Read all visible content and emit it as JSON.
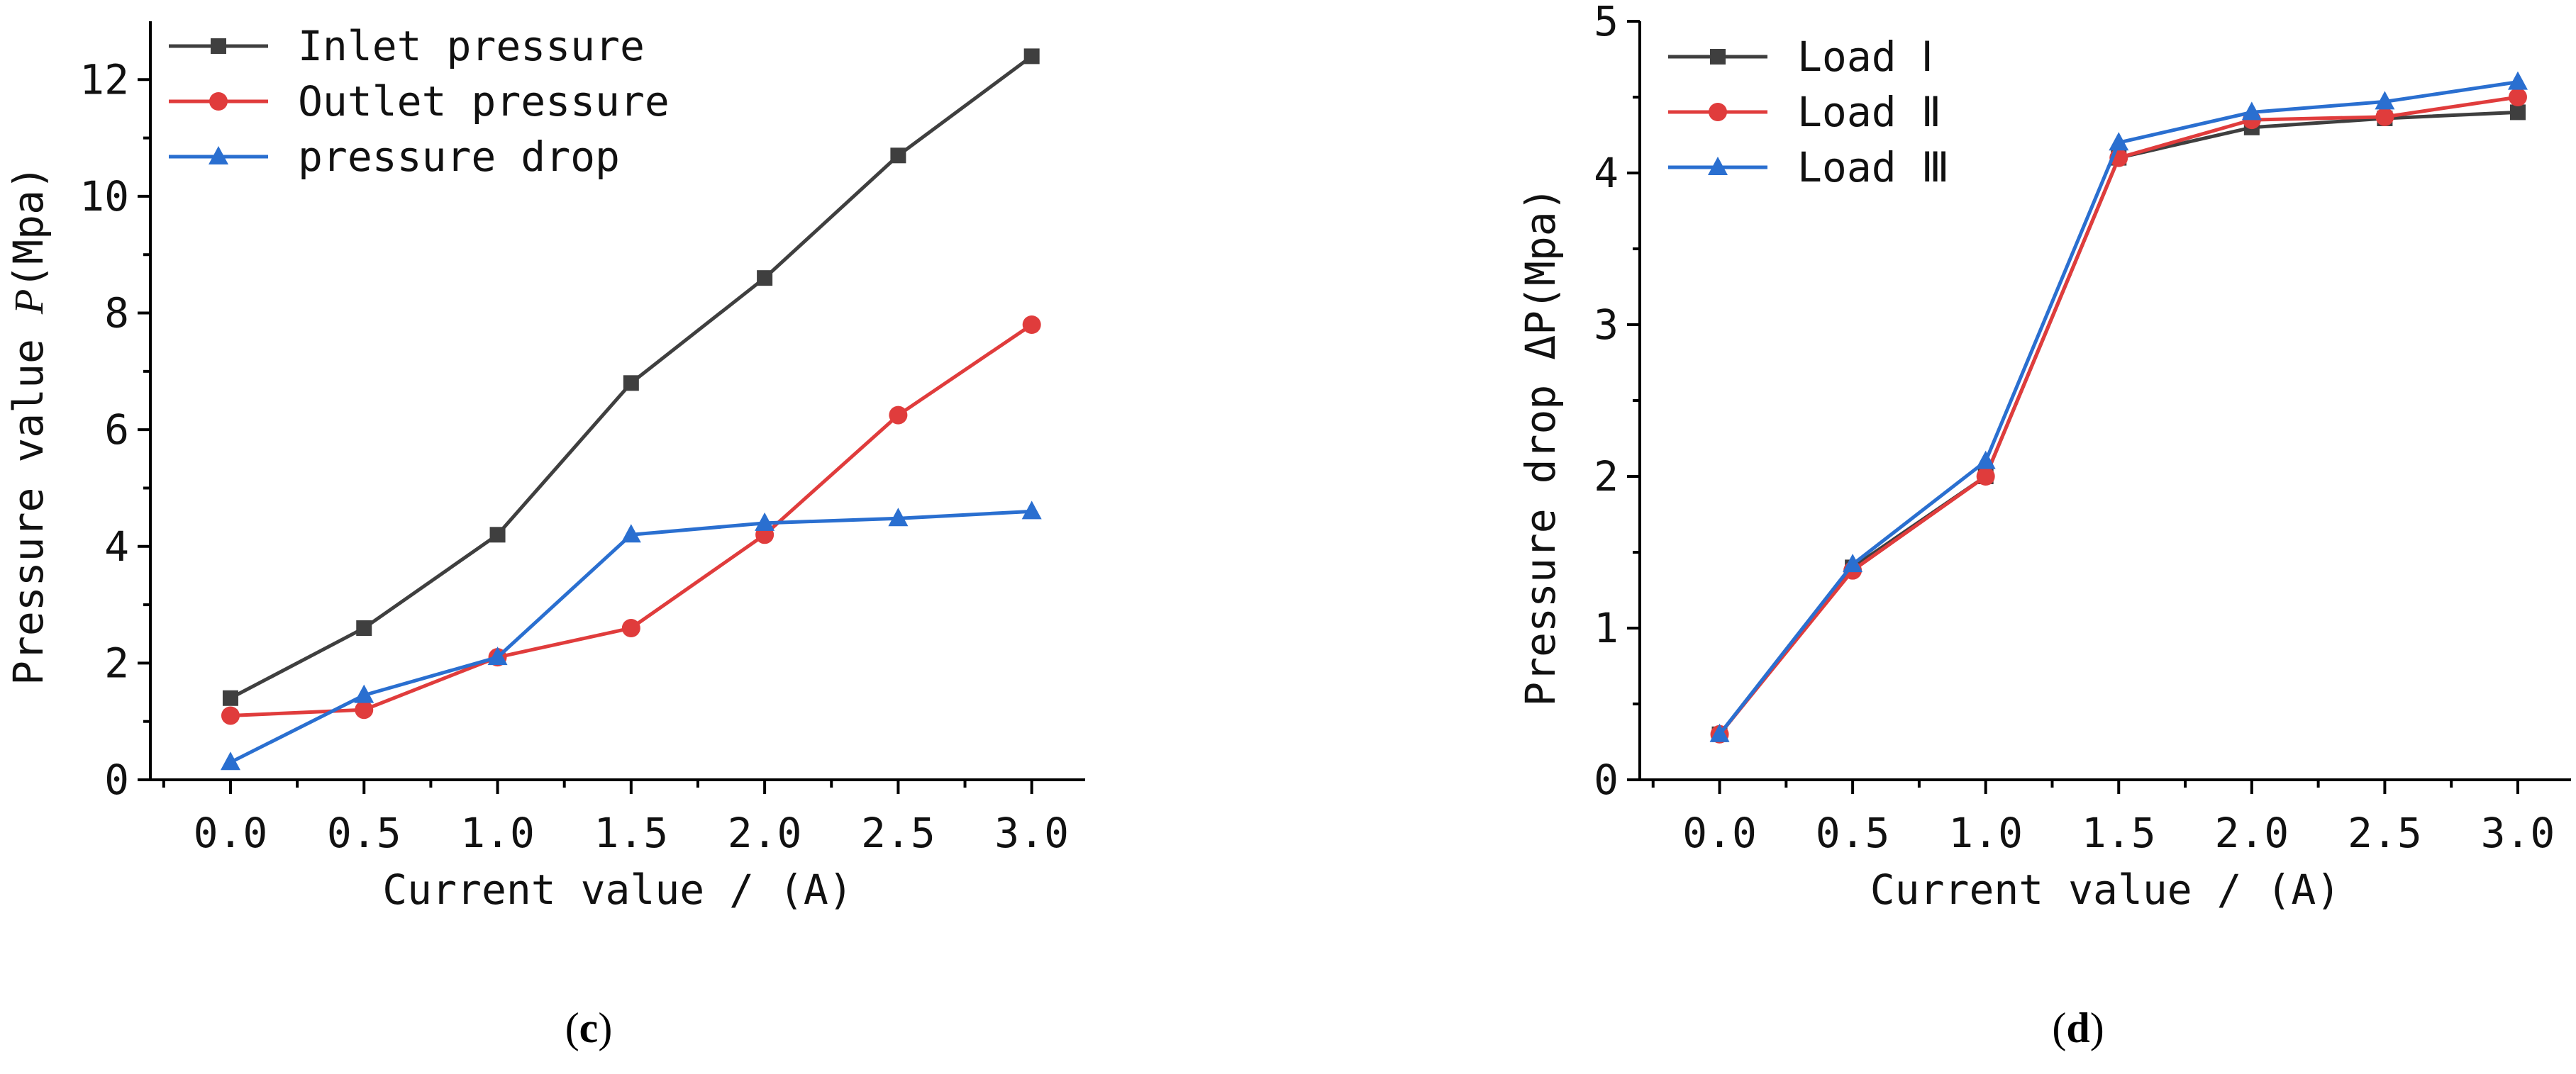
{
  "chart_data": [
    {
      "type": "line",
      "panel_label": "c",
      "x": [
        0.0,
        0.5,
        1.0,
        1.5,
        2.0,
        2.5,
        3.0
      ],
      "x_tick_labels": [
        "0.0",
        "0.5",
        "1.0",
        "1.5",
        "2.0",
        "2.5",
        "3.0"
      ],
      "xlim": [
        -0.3,
        3.2
      ],
      "ylim": [
        0,
        13
      ],
      "y_ticks": [
        0,
        2,
        4,
        6,
        8,
        10,
        12
      ],
      "y_tick_labels": [
        "0",
        "2",
        "4",
        "6",
        "8",
        "10",
        "12"
      ],
      "xlabel": "Current value / (A)",
      "ylabel_prefix": "Pressure value ",
      "ylabel_italic": "P",
      "ylabel_suffix": "(Mpa)",
      "legend_position": "top-left",
      "series": [
        {
          "name": "Inlet pressure",
          "color": "#3f3f3f",
          "marker": "square",
          "values": [
            1.4,
            2.6,
            4.2,
            6.8,
            8.6,
            10.7,
            12.4
          ]
        },
        {
          "name": "Outlet pressure",
          "color": "#e03c3c",
          "marker": "circle",
          "values": [
            1.1,
            1.2,
            2.1,
            2.6,
            4.2,
            6.25,
            7.8
          ]
        },
        {
          "name": "pressure drop",
          "color": "#2a6fd0",
          "marker": "triangle",
          "values": [
            0.3,
            1.45,
            2.1,
            4.2,
            4.4,
            4.48,
            4.6
          ]
        }
      ]
    },
    {
      "type": "line",
      "panel_label": "d",
      "x": [
        0.0,
        0.5,
        1.0,
        1.5,
        2.0,
        2.5,
        3.0
      ],
      "x_tick_labels": [
        "0.0",
        "0.5",
        "1.0",
        "1.5",
        "2.0",
        "2.5",
        "3.0"
      ],
      "xlim": [
        -0.3,
        3.2
      ],
      "ylim": [
        0,
        5
      ],
      "y_ticks": [
        0,
        1,
        2,
        3,
        4,
        5
      ],
      "y_tick_labels": [
        "0",
        "1",
        "2",
        "3",
        "4",
        "5"
      ],
      "xlabel": "Current value / (A)",
      "ylabel": "Pressure drop ΔP(Mpa)",
      "legend_position": "top-left",
      "series": [
        {
          "name": "Load Ⅰ",
          "color": "#3f3f3f",
          "marker": "square",
          "values": [
            0.3,
            1.4,
            2.0,
            4.1,
            4.3,
            4.36,
            4.4
          ]
        },
        {
          "name": "Load Ⅱ",
          "color": "#e03c3c",
          "marker": "circle",
          "values": [
            0.3,
            1.38,
            2.0,
            4.1,
            4.35,
            4.37,
            4.5
          ]
        },
        {
          "name": "Load Ⅲ",
          "color": "#2a6fd0",
          "marker": "triangle",
          "values": [
            0.3,
            1.42,
            2.1,
            4.2,
            4.4,
            4.47,
            4.6
          ]
        }
      ]
    }
  ]
}
